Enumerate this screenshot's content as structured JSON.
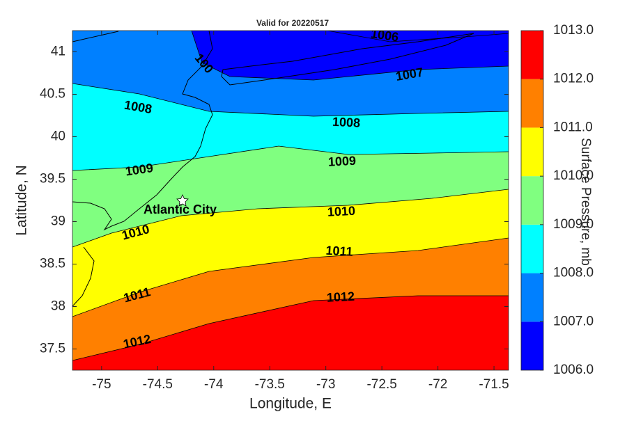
{
  "chart_data": {
    "type": "contour",
    "title": "Valid for 20220517",
    "xlabel": "Longitude, E",
    "ylabel": "Latitude, N",
    "xlim": [
      -75.26,
      -71.37
    ],
    "ylim": [
      37.25,
      41.25
    ],
    "xticks": [
      -75,
      -74.5,
      -74,
      -73.5,
      -73,
      -72.5,
      -72,
      -71.5
    ],
    "yticks": [
      37.5,
      38,
      38.5,
      39,
      39.5,
      40,
      40.5,
      41
    ],
    "colorbar": {
      "label": "Surface Pressure, mb",
      "ticks": [
        {
          "value": 1006,
          "label": "1006.0"
        },
        {
          "value": 1007,
          "label": "1007.0"
        },
        {
          "value": 1008,
          "label": "1008.0"
        },
        {
          "value": 1009,
          "label": "1009.0"
        },
        {
          "value": 1010,
          "label": "1010.0"
        },
        {
          "value": 1011,
          "label": "1011.0"
        },
        {
          "value": 1012,
          "label": "1012.0"
        },
        {
          "value": 1013,
          "label": "1013.0"
        }
      ],
      "colors": [
        "#0000ff",
        "#0080ff",
        "#00ffff",
        "#80ff80",
        "#ffff00",
        "#ff8000",
        "#ff0000"
      ]
    },
    "contour_labels": [
      "1006",
      "1007",
      "100",
      "1008",
      "1008",
      "1009",
      "1009",
      "1010",
      "1010",
      "1011",
      "1011",
      "1012",
      "1012"
    ],
    "annotation": "Atlantic City"
  }
}
